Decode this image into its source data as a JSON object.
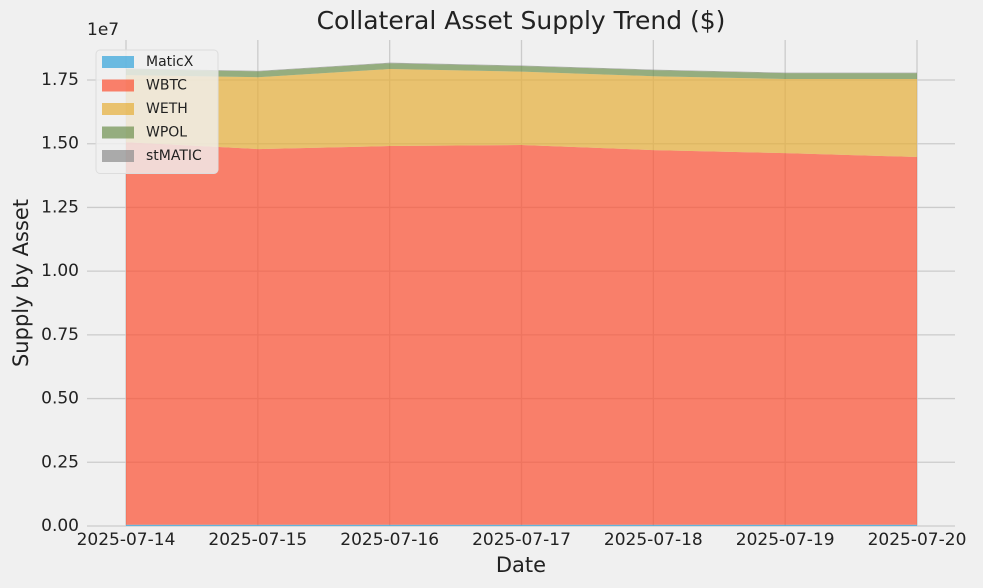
{
  "chart_data": {
    "type": "stacked_area",
    "title": "Collateral Asset Supply Trend ($)",
    "x_label": "Date",
    "y_label": "Supply by Asset",
    "y_offset_label": "1e7",
    "x": [
      "2025-07-14",
      "2025-07-15",
      "2025-07-16",
      "2025-07-17",
      "2025-07-18",
      "2025-07-19",
      "2025-07-20"
    ],
    "xticks": [
      "2025-07-14",
      "2025-07-15",
      "2025-07-16",
      "2025-07-17",
      "2025-07-18",
      "2025-07-19",
      "2025-07-20"
    ],
    "series": [
      {
        "name": "MaticX",
        "color": "#30a2da",
        "values": [
          50000,
          50000,
          50000,
          50000,
          50000,
          50000,
          50000
        ]
      },
      {
        "name": "WBTC",
        "color": "#fc4f30",
        "values": [
          15010000,
          14740000,
          14860000,
          14900000,
          14700000,
          14580000,
          14430000
        ]
      },
      {
        "name": "WETH",
        "color": "#e5ae38",
        "values": [
          2630000,
          2820000,
          3020000,
          2880000,
          2900000,
          2910000,
          3060000
        ]
      },
      {
        "name": "WPOL",
        "color": "#6d904f",
        "values": [
          240000,
          230000,
          230000,
          220000,
          240000,
          230000,
          230000
        ]
      },
      {
        "name": "stMATIC",
        "color": "#8b8b8b",
        "values": [
          20000,
          20000,
          20000,
          20000,
          20000,
          20000,
          20000
        ]
      }
    ],
    "ylim": [
      0,
      19070000
    ],
    "yticks": [
      {
        "value": 0,
        "label": "0.00"
      },
      {
        "value": 2500000,
        "label": "0.25"
      },
      {
        "value": 5000000,
        "label": "0.50"
      },
      {
        "value": 7500000,
        "label": "0.75"
      },
      {
        "value": 10000000,
        "label": "1.00"
      },
      {
        "value": 12500000,
        "label": "1.25"
      },
      {
        "value": 15000000,
        "label": "1.50"
      },
      {
        "value": 17500000,
        "label": "1.75"
      }
    ],
    "grid": true,
    "legend": "upper left",
    "alpha": 0.7
  }
}
